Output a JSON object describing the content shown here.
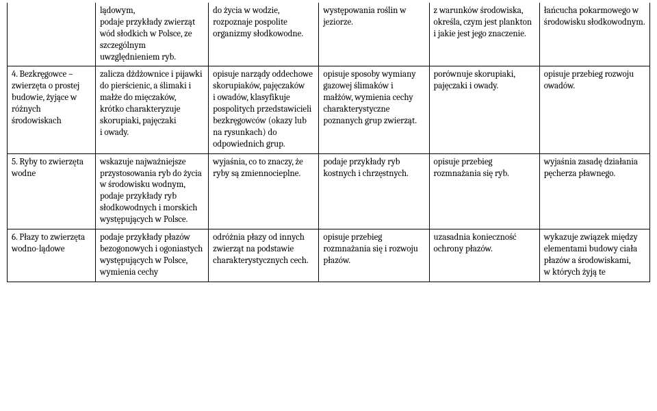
{
  "rows": [
    {
      "c0": "",
      "c1": "lądowym,\npodaje przykłady zwierząt wód słodkich w Polsce, ze szczególnym uwzględnieniem ryb.",
      "c2": "do życia w wodzie, rozpoznaje pospolite organizmy słodkowodne.",
      "c3": "występowania roślin w jeziorze.",
      "c4": "z warunków środowiska,\nokreśla, czym jest plankton i jakie jest jego znaczenie.",
      "c5": "łańcucha pokarmowego w środowisku słodkowodnym."
    },
    {
      "c0": "4. Bezkręgowce – zwierzęta o prostej budowie, żyjące w różnych środowiskach",
      "c1": "zalicza dżdżownice i pijawki do pierścienic, a ślimaki i małże do mięczaków,\nkrótko charakteryzuje skorupiaki, pajęczaki i owady.",
      "c2": "opisuje narządy oddechowe skorupiaków, pajęczaków i owadów, klasyfikuje pospolitych przedstawicieli bezkręgowców (okazy lub na rysunkach) do odpowiednich grup.",
      "c3": "opisuje sposoby wymiany gazowej ślimaków i małżów, wymienia cechy charakterystyczne poznanych grup zwierząt.",
      "c4": "porównuje skorupiaki, pajęczaki i owady.",
      "c5": "opisuje przebieg rozwoju owadów."
    },
    {
      "c0": "5. Ryby to zwierzęta wodne",
      "c1": "wskazuje najważniejsze przystosowania ryb do życia w środowisku wodnym,\npodaje przykłady ryb słodkowodnych i morskich występujących w Polsce.",
      "c2": "wyjaśnia, co to znaczy, że ryby są zmiennocieplne.",
      "c3": "podaje przykłady ryb kostnych i chrzęstnych.",
      "c4": "opisuje przebieg rozmnażania się ryb.",
      "c5": "wyjaśnia zasadę działania pęcherza pławnego."
    },
    {
      "c0": "6. Płazy to zwierzęta wodno-lądowe",
      "c1": "podaje przykłady płazów bezogonowych i ogoniastych występujących w Polsce, wymienia cechy",
      "c2": "odróżnia płazy od innych zwierząt na podstawie charakterystycznych cech.",
      "c3": "opisuje przebieg rozmnażania się i rozwoju płazów.",
      "c4": "uzasadnia konieczność ochrony płazów.",
      "c5": "wykazuje związek między elementami budowy ciała płazów a środowiskami, w których żyją te"
    }
  ]
}
